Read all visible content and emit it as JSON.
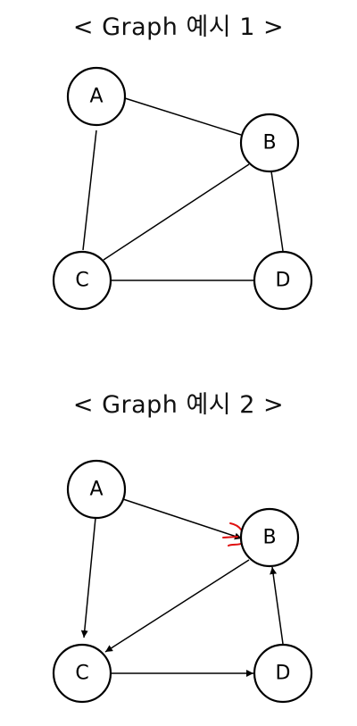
{
  "diagram1": {
    "title": "< Graph 예시 1 >",
    "nodes": [
      {
        "id": "A",
        "label": "A"
      },
      {
        "id": "B",
        "label": "B"
      },
      {
        "id": "C",
        "label": "C"
      },
      {
        "id": "D",
        "label": "D"
      }
    ],
    "edges": [
      {
        "from": "A",
        "to": "B",
        "directed": false
      },
      {
        "from": "A",
        "to": "C",
        "directed": false
      },
      {
        "from": "B",
        "to": "C",
        "directed": false
      },
      {
        "from": "B",
        "to": "D",
        "directed": false
      },
      {
        "from": "C",
        "to": "D",
        "directed": false
      }
    ]
  },
  "diagram2": {
    "title": "< Graph 예시 2 >",
    "nodes": [
      {
        "id": "A",
        "label": "A"
      },
      {
        "id": "B",
        "label": "B"
      },
      {
        "id": "C",
        "label": "C"
      },
      {
        "id": "D",
        "label": "D"
      }
    ],
    "edges": [
      {
        "from": "A",
        "to": "B",
        "directed": true
      },
      {
        "from": "A",
        "to": "C",
        "directed": true
      },
      {
        "from": "B",
        "to": "C",
        "directed": true
      },
      {
        "from": "C",
        "to": "D",
        "directed": true
      },
      {
        "from": "D",
        "to": "B",
        "directed": true
      }
    ],
    "annotation_color": "#e01010"
  }
}
